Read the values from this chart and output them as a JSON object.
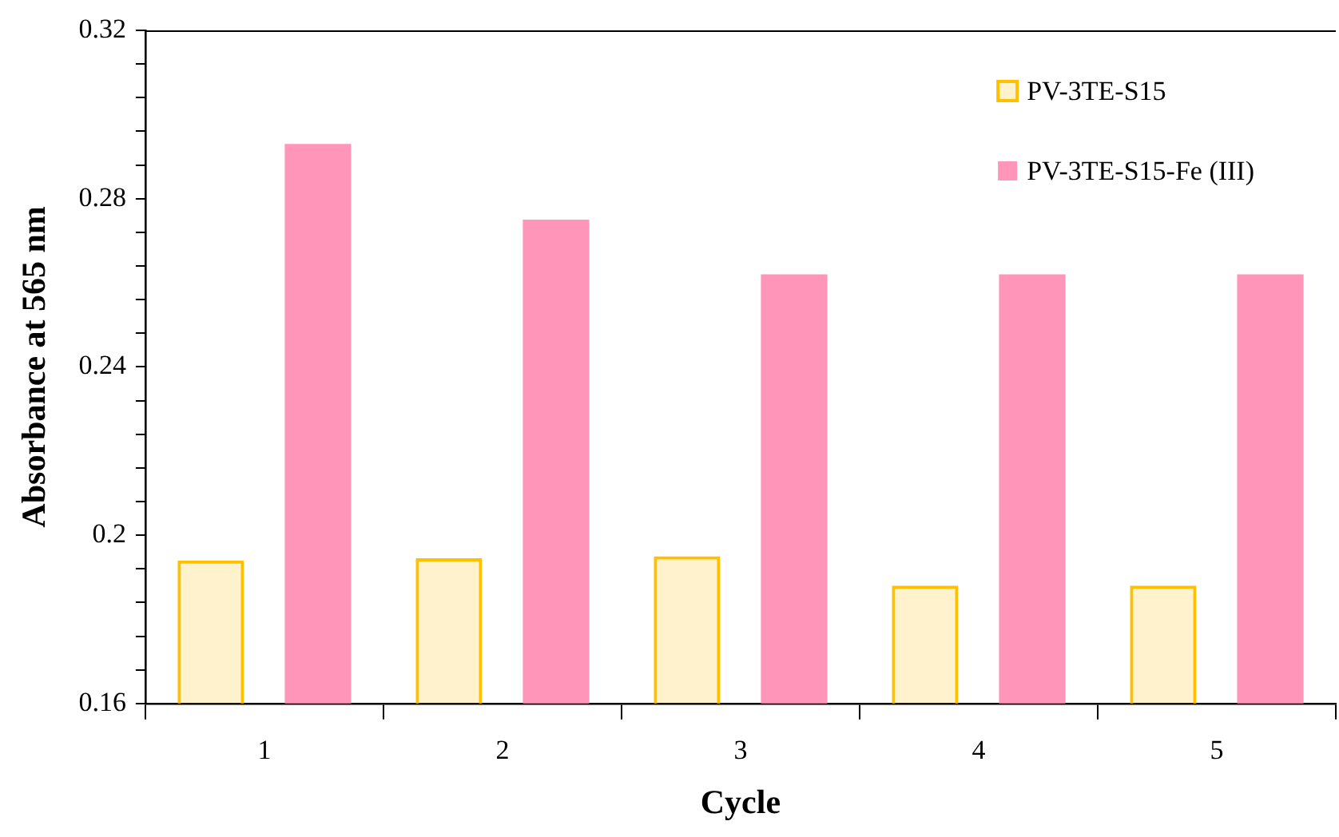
{
  "chart_data": {
    "type": "bar",
    "xlabel": "Cycle",
    "ylabel": "Absorbance at 565 nm",
    "categories": [
      "1",
      "2",
      "3",
      "4",
      "5"
    ],
    "series": [
      {
        "name": "PV-3TE-S15",
        "color": "#ffc000",
        "values": [
          0.194,
          0.1945,
          0.195,
          0.188,
          0.188
        ]
      },
      {
        "name": "PV-3TE-S15-Fe (III)",
        "color": "#ff95b8",
        "values": [
          0.293,
          0.275,
          0.262,
          0.262,
          0.262
        ]
      }
    ],
    "ylim": [
      0.16,
      0.32
    ],
    "yticks": [
      0.16,
      {
        "value": 0.168,
        "label": null
      },
      {
        "value": 0.176,
        "label": null
      },
      {
        "value": 0.184,
        "label": null
      },
      {
        "value": 0.192,
        "label": null
      },
      {
        "value": 0.2,
        "label": "0.2"
      },
      {
        "value": 0.208,
        "label": null
      },
      {
        "value": 0.216,
        "label": null
      },
      {
        "value": 0.224,
        "label": null
      },
      {
        "value": 0.232,
        "label": null
      },
      0.24,
      {
        "value": 0.248,
        "label": null
      },
      {
        "value": 0.256,
        "label": null
      },
      {
        "value": 0.264,
        "label": null
      },
      {
        "value": 0.272,
        "label": null
      },
      0.28,
      {
        "value": 0.288,
        "label": null
      },
      {
        "value": 0.296,
        "label": null
      },
      {
        "value": 0.304,
        "label": null
      },
      {
        "value": 0.312,
        "label": null
      },
      0.32
    ],
    "grid": false,
    "legend": "top right"
  }
}
